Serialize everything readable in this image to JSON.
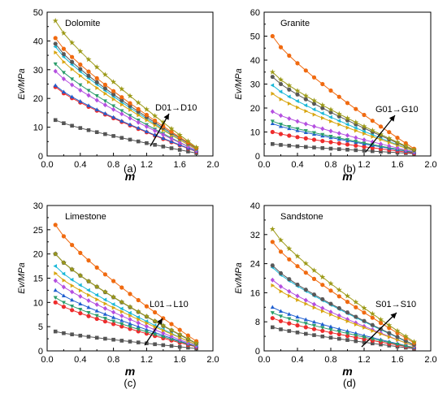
{
  "figure": {
    "panels": [
      "a",
      "b",
      "c",
      "d"
    ]
  },
  "series_colors": [
    "#555555",
    "#ee2c2c",
    "#1f5fd0",
    "#2a9d6a",
    "#b44fe0",
    "#19b8d8",
    "#d8a50f",
    "#585858",
    "#f06a10",
    "#9c9a18"
  ],
  "chart_data": [
    {
      "type": "line",
      "panel": "a",
      "caption": "(a)",
      "rock": "Dolomite",
      "annotation": "D01→D10",
      "xlabel": "m",
      "ylabel": "Ev/MPa",
      "xlim": [
        0,
        2.0
      ],
      "ylim": [
        0,
        50
      ],
      "xticks": [
        "0.0",
        "0.4",
        "0.8",
        "1.2",
        "1.6",
        "2.0"
      ],
      "yticks": [
        "0",
        "10",
        "20",
        "30",
        "40",
        "50"
      ],
      "grid": false,
      "x": [
        0.1,
        0.2,
        0.3,
        0.4,
        0.5,
        0.6,
        0.7,
        0.8,
        0.9,
        1.0,
        1.1,
        1.2,
        1.3,
        1.4,
        1.5,
        1.6,
        1.7,
        1.8
      ],
      "series": [
        {
          "start": 12.5,
          "end": 1.0,
          "marker": "square"
        },
        {
          "start": 24.0,
          "end": 1.5,
          "marker": "circle"
        },
        {
          "start": 24.5,
          "end": 1.6,
          "marker": "triangle-up"
        },
        {
          "start": 32.0,
          "end": 1.8,
          "marker": "triangle-down"
        },
        {
          "start": 29.5,
          "end": 1.9,
          "marker": "diamond"
        },
        {
          "start": 38.0,
          "end": 2.2,
          "marker": "triangle-left"
        },
        {
          "start": 36.0,
          "end": 2.3,
          "marker": "triangle-right"
        },
        {
          "start": 39.0,
          "end": 2.6,
          "marker": "hexagon"
        },
        {
          "start": 41.0,
          "end": 2.8,
          "marker": "circle"
        },
        {
          "start": 47.0,
          "end": 3.0,
          "marker": "star"
        }
      ]
    },
    {
      "type": "line",
      "panel": "b",
      "caption": "(b)",
      "rock": "Granite",
      "annotation": "G01→G10",
      "xlabel": "m",
      "ylabel": "Ev/MPa",
      "xlim": [
        0,
        2.0
      ],
      "ylim": [
        0,
        60
      ],
      "xticks": [
        "0.0",
        "0.4",
        "0.8",
        "1.2",
        "1.6",
        "2.0"
      ],
      "yticks": [
        "0",
        "10",
        "20",
        "30",
        "40",
        "50",
        "60"
      ],
      "grid": false,
      "x": [
        0.1,
        0.2,
        0.3,
        0.4,
        0.5,
        0.6,
        0.7,
        0.8,
        0.9,
        1.0,
        1.1,
        1.2,
        1.3,
        1.4,
        1.5,
        1.6,
        1.7,
        1.8
      ],
      "series": [
        {
          "start": 5.0,
          "end": 1.0,
          "marker": "square"
        },
        {
          "start": 10.0,
          "end": 1.2,
          "marker": "circle"
        },
        {
          "start": 13.5,
          "end": 1.4,
          "marker": "triangle-up"
        },
        {
          "start": 14.5,
          "end": 1.5,
          "marker": "triangle-down"
        },
        {
          "start": 18.5,
          "end": 1.7,
          "marker": "diamond"
        },
        {
          "start": 29.5,
          "end": 2.0,
          "marker": "triangle-left"
        },
        {
          "start": 26.0,
          "end": 2.1,
          "marker": "triangle-right"
        },
        {
          "start": 33.0,
          "end": 2.4,
          "marker": "hexagon"
        },
        {
          "start": 50.0,
          "end": 3.0,
          "marker": "circle"
        },
        {
          "start": 35.0,
          "end": 2.6,
          "marker": "star"
        }
      ]
    },
    {
      "type": "line",
      "panel": "c",
      "caption": "(c)",
      "rock": "Limestone",
      "annotation": "L01→L10",
      "xlabel": "m",
      "ylabel": "Ev/MPa",
      "xlim": [
        0,
        2.0
      ],
      "ylim": [
        0,
        30
      ],
      "xticks": [
        "0.0",
        "0.4",
        "0.8",
        "1.2",
        "1.6",
        "2.0"
      ],
      "yticks": [
        "0",
        "5",
        "10",
        "15",
        "20",
        "25",
        "30"
      ],
      "grid": false,
      "x": [
        0.1,
        0.2,
        0.3,
        0.4,
        0.5,
        0.6,
        0.7,
        0.8,
        0.9,
        1.0,
        1.1,
        1.2,
        1.3,
        1.4,
        1.5,
        1.6,
        1.7,
        1.8
      ],
      "series": [
        {
          "start": 4.0,
          "end": 0.5,
          "marker": "square"
        },
        {
          "start": 10.0,
          "end": 0.8,
          "marker": "circle"
        },
        {
          "start": 12.5,
          "end": 0.9,
          "marker": "triangle-up"
        },
        {
          "start": 11.0,
          "end": 0.9,
          "marker": "triangle-down"
        },
        {
          "start": 14.5,
          "end": 1.0,
          "marker": "diamond"
        },
        {
          "start": 17.5,
          "end": 1.2,
          "marker": "triangle-left"
        },
        {
          "start": 16.0,
          "end": 1.3,
          "marker": "triangle-right"
        },
        {
          "start": 20.0,
          "end": 1.5,
          "marker": "hexagon"
        },
        {
          "start": 26.0,
          "end": 2.0,
          "marker": "circle"
        },
        {
          "start": 20.0,
          "end": 1.6,
          "marker": "star"
        }
      ]
    },
    {
      "type": "line",
      "panel": "d",
      "caption": "(d)",
      "rock": "Sandstone",
      "annotation": "S01→S10",
      "xlabel": "m",
      "ylabel": "Ev/MPa",
      "xlim": [
        0,
        2.0
      ],
      "ylim": [
        0,
        40
      ],
      "xticks": [
        "0.0",
        "0.4",
        "0.8",
        "1.2",
        "1.6",
        "2.0"
      ],
      "yticks": [
        "0",
        "8",
        "16",
        "24",
        "32",
        "40"
      ],
      "grid": false,
      "x": [
        0.1,
        0.2,
        0.3,
        0.4,
        0.5,
        0.6,
        0.7,
        0.8,
        0.9,
        1.0,
        1.1,
        1.2,
        1.3,
        1.4,
        1.5,
        1.6,
        1.7,
        1.8
      ],
      "series": [
        {
          "start": 6.5,
          "end": 0.6,
          "marker": "square"
        },
        {
          "start": 9.0,
          "end": 0.8,
          "marker": "circle"
        },
        {
          "start": 12.0,
          "end": 0.9,
          "marker": "triangle-up"
        },
        {
          "start": 10.5,
          "end": 0.9,
          "marker": "triangle-down"
        },
        {
          "start": 19.5,
          "end": 1.3,
          "marker": "diamond"
        },
        {
          "start": 23.0,
          "end": 1.6,
          "marker": "triangle-left"
        },
        {
          "start": 18.0,
          "end": 1.4,
          "marker": "triangle-right"
        },
        {
          "start": 23.5,
          "end": 1.7,
          "marker": "hexagon"
        },
        {
          "start": 30.0,
          "end": 2.2,
          "marker": "circle"
        },
        {
          "start": 33.5,
          "end": 2.5,
          "marker": "star"
        }
      ]
    }
  ]
}
